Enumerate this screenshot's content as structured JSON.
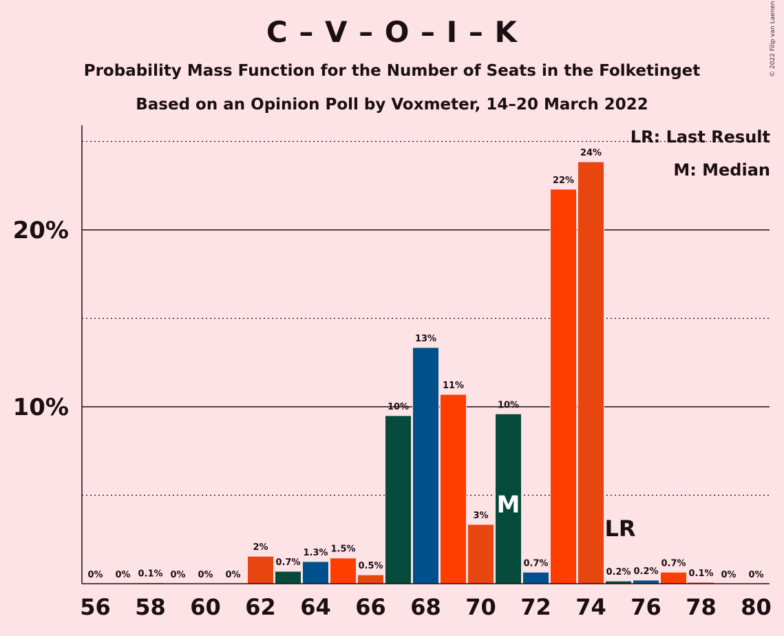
{
  "chart_data": {
    "type": "bar",
    "title": "C – V – O – I – K",
    "subtitle": "Probability Mass Function for the Number of Seats in the Folketinget",
    "subtitle2": "Based on an Opinion Poll by Voxmeter, 14–20 March 2022",
    "copyright": "© 2022 Filip van Laenen",
    "legend": {
      "lr": "LR: Last Result",
      "m": "M: Median"
    },
    "xlabel": "",
    "ylabel": "",
    "ylim": [
      0,
      26
    ],
    "y_ticks": [
      {
        "value": 10,
        "label": "10%"
      },
      {
        "value": 20,
        "label": "20%"
      }
    ],
    "x_ticks": [
      56,
      58,
      60,
      62,
      64,
      66,
      68,
      70,
      72,
      74,
      76,
      78,
      80
    ],
    "categories": [
      56,
      57,
      58,
      59,
      60,
      61,
      62,
      63,
      64,
      65,
      66,
      67,
      68,
      69,
      70,
      71,
      72,
      73,
      74,
      75,
      76,
      77,
      78,
      79,
      80
    ],
    "values": [
      0,
      0,
      0.05,
      0,
      0,
      0,
      1.55,
      0.7,
      1.25,
      1.45,
      0.5,
      9.5,
      13.35,
      10.7,
      3.35,
      9.6,
      0.65,
      22.3,
      23.85,
      0.15,
      0.2,
      0.65,
      0.08,
      0,
      0
    ],
    "labels": [
      "0%",
      "0%",
      "0.1%",
      "0%",
      "0%",
      "0%",
      "2%",
      "0.7%",
      "1.3%",
      "1.5%",
      "0.5%",
      "10%",
      "13%",
      "11%",
      "3%",
      "10%",
      "0.7%",
      "22%",
      "24%",
      "0.2%",
      "0.2%",
      "0.7%",
      "0.1%",
      "0%",
      "0%"
    ],
    "colors": [
      "#00508c",
      "#ff3d00",
      "#e8450f",
      "#054a3b"
    ],
    "median_seat": 71,
    "median_label": "M",
    "last_result_seat": 75,
    "last_result_label": "LR",
    "grid": "solid at 10% steps, dotted at 5% steps"
  }
}
